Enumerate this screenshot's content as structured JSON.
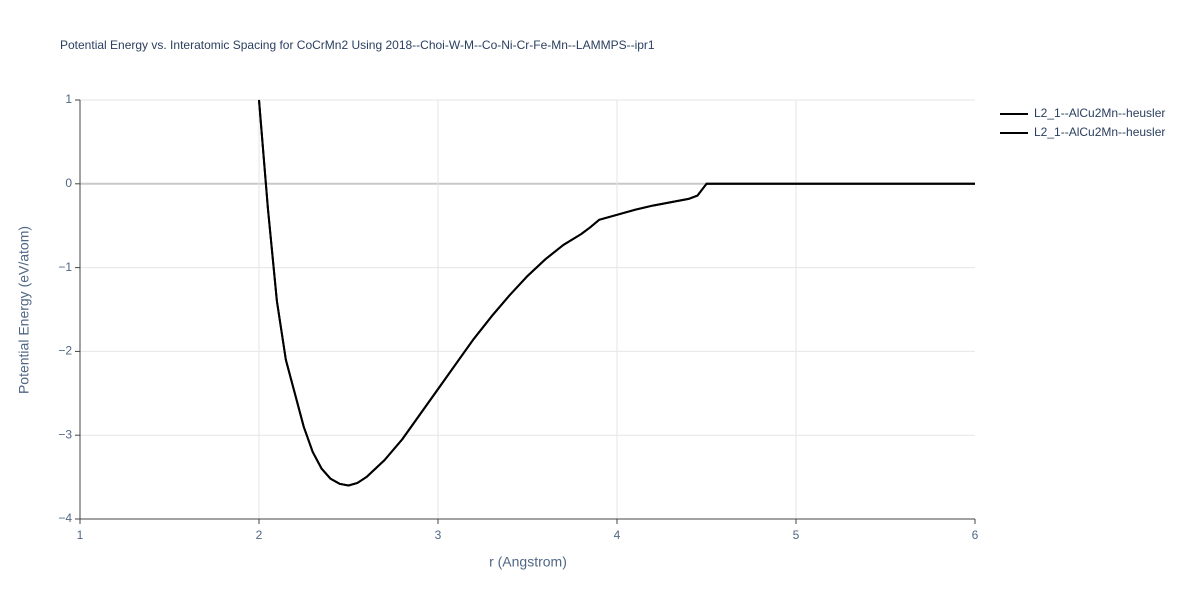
{
  "chart_data": {
    "type": "line",
    "title": "Potential Energy vs. Interatomic Spacing for CoCrMn2 Using 2018--Choi-W-M--Co-Ni-Cr-Fe-Mn--LAMMPS--ipr1",
    "x_label": "r (Angstrom)",
    "y_label": "Potential Energy (eV/atom)",
    "x": [
      2.0,
      2.05,
      2.1,
      2.15,
      2.2,
      2.25,
      2.3,
      2.35,
      2.4,
      2.45,
      2.5,
      2.55,
      2.6,
      2.7,
      2.8,
      2.9,
      3.0,
      3.1,
      3.2,
      3.3,
      3.4,
      3.5,
      3.6,
      3.7,
      3.8,
      3.85,
      3.9,
      4.0,
      4.1,
      4.2,
      4.3,
      4.4,
      4.45,
      4.5,
      5.0,
      5.5,
      6.0
    ],
    "series": [
      {
        "name": "L2_1--AlCu2Mn--heusler",
        "color": "#000000",
        "values": [
          1.0,
          -0.3,
          -1.4,
          -2.1,
          -2.5,
          -2.9,
          -3.2,
          -3.4,
          -3.52,
          -3.58,
          -3.6,
          -3.57,
          -3.5,
          -3.3,
          -3.05,
          -2.75,
          -2.45,
          -2.15,
          -1.85,
          -1.58,
          -1.33,
          -1.1,
          -0.9,
          -0.73,
          -0.6,
          -0.52,
          -0.43,
          -0.37,
          -0.31,
          -0.26,
          -0.22,
          -0.18,
          -0.14,
          0,
          0,
          0,
          0
        ]
      },
      {
        "name": "L2_1--AlCu2Mn--heusler",
        "color": "#000000",
        "values": [
          1.0,
          -0.3,
          -1.4,
          -2.1,
          -2.5,
          -2.9,
          -3.2,
          -3.4,
          -3.52,
          -3.58,
          -3.6,
          -3.57,
          -3.5,
          -3.3,
          -3.05,
          -2.75,
          -2.45,
          -2.15,
          -1.85,
          -1.58,
          -1.33,
          -1.1,
          -0.9,
          -0.73,
          -0.6,
          -0.52,
          -0.43,
          -0.37,
          -0.31,
          -0.26,
          -0.22,
          -0.18,
          -0.14,
          0,
          0,
          0,
          0
        ]
      }
    ],
    "xlim": [
      1,
      6
    ],
    "xticks": [
      1,
      2,
      3,
      4,
      5,
      6
    ],
    "ylim": [
      -4,
      1
    ],
    "yticks": [
      {
        "value": -4,
        "label": "−4"
      },
      {
        "value": -3,
        "label": "−3"
      },
      {
        "value": -2,
        "label": "−2"
      },
      {
        "value": -1,
        "label": "−1"
      },
      0,
      1
    ],
    "grid": true,
    "legend": "right"
  }
}
